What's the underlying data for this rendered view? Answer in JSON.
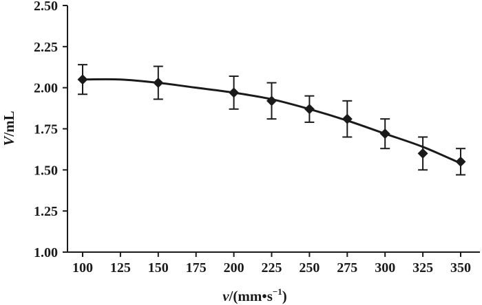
{
  "chart_data": {
    "type": "scatter",
    "xlabel": {
      "var": "v",
      "unit_prefix": "/(mm•s",
      "exp": "−1",
      "unit_suffix": ")"
    },
    "ylabel": {
      "var": "V",
      "unit": "/mL"
    },
    "x_ticks": [
      "100",
      "125",
      "150",
      "175",
      "200",
      "225",
      "250",
      "275",
      "300",
      "325",
      "350"
    ],
    "y_ticks": [
      "1.00",
      "1.25",
      "1.50",
      "1.75",
      "2.00",
      "2.25",
      "2.50"
    ],
    "ylim": [
      1.0,
      2.5
    ],
    "x": [
      100,
      150,
      200,
      225,
      250,
      275,
      300,
      325,
      350
    ],
    "y": [
      2.05,
      2.03,
      1.97,
      1.92,
      1.87,
      1.81,
      1.72,
      1.6,
      1.55
    ],
    "err_low": [
      1.96,
      1.93,
      1.87,
      1.81,
      1.79,
      1.7,
      1.63,
      1.5,
      1.47
    ],
    "err_high": [
      2.14,
      2.13,
      2.07,
      2.03,
      1.95,
      1.92,
      1.81,
      1.7,
      1.63
    ],
    "fit_line": {
      "x": [
        100,
        125,
        150,
        175,
        200,
        225,
        250,
        275,
        300,
        325,
        350
      ],
      "y": [
        2.05,
        2.05,
        2.03,
        2.0,
        1.97,
        1.93,
        1.87,
        1.8,
        1.72,
        1.64,
        1.54
      ]
    },
    "marker": "diamond",
    "error_bars": true,
    "grid": false,
    "legend": "none"
  }
}
